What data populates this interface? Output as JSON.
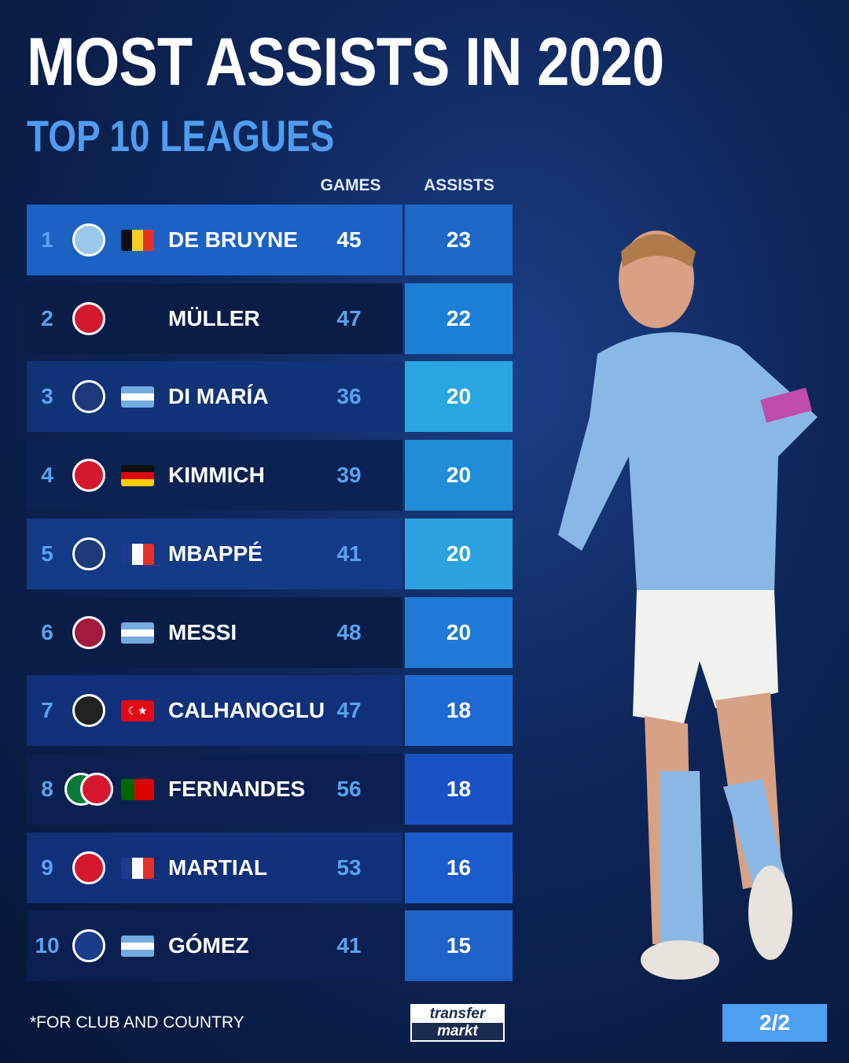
{
  "title": "MOST ASSISTS IN 2020",
  "subtitle": "TOP 10 LEAGUES",
  "footnote": "*FOR CLUB AND COUNTRY",
  "logo": {
    "line1": "transfer",
    "line2": "markt"
  },
  "page_indicator": "2/2",
  "chart_data": {
    "type": "table",
    "columns": [
      "GAMES",
      "ASSISTS"
    ],
    "rows": [
      {
        "rank": "1",
        "club": "Manchester City",
        "flag": "Belgium",
        "name": "DE BRUYNE",
        "games": 45,
        "assists": 23
      },
      {
        "rank": "2",
        "club": "Bayern Munich",
        "flag": "",
        "name": "MÜLLER",
        "games": 47,
        "assists": 22
      },
      {
        "rank": "3",
        "club": "Paris Saint-Germain",
        "flag": "Argentina",
        "name": "DI MARÍA",
        "games": 36,
        "assists": 20
      },
      {
        "rank": "4",
        "club": "Bayern Munich",
        "flag": "Germany",
        "name": "KIMMICH",
        "games": 39,
        "assists": 20
      },
      {
        "rank": "5",
        "club": "Paris Saint-Germain",
        "flag": "France",
        "name": "MBAPPÉ",
        "games": 41,
        "assists": 20
      },
      {
        "rank": "6",
        "club": "FC Barcelona",
        "flag": "Argentina",
        "name": "MESSI",
        "games": 48,
        "assists": 20
      },
      {
        "rank": "7",
        "club": "AC Milan",
        "flag": "Turkey",
        "name": "CALHANOGLU",
        "games": 47,
        "assists": 18
      },
      {
        "rank": "8",
        "club": "Sporting CP / Manchester United",
        "flag": "Portugal",
        "name": "FERNANDES",
        "games": 56,
        "assists": 18
      },
      {
        "rank": "9",
        "club": "Manchester United",
        "flag": "France",
        "name": "MARTIAL",
        "games": 53,
        "assists": 16
      },
      {
        "rank": "10",
        "club": "Atalanta",
        "flag": "Argentina",
        "name": "GÓMEZ",
        "games": 41,
        "assists": 15
      }
    ]
  },
  "colors": {
    "accent": "#4f9cf0",
    "highlight_row": "#1b62c4"
  }
}
